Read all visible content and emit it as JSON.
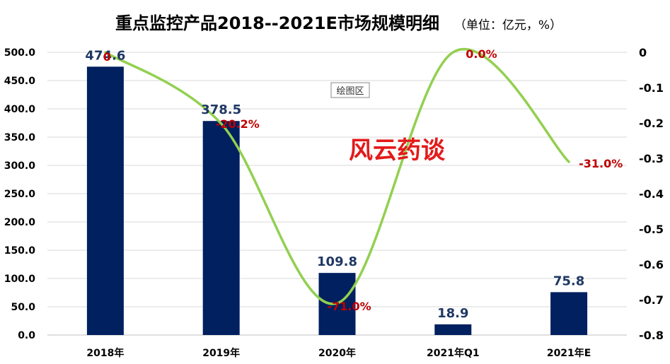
{
  "chart_data": {
    "type": "bar",
    "title": "重点监控产品2018--2021E市场规模明细",
    "unit_note": "（单位：亿元，%）",
    "categories": [
      "2018年",
      "2019年",
      "2020年",
      "2021年Q1",
      "2021年E"
    ],
    "series": [
      {
        "type": "bar",
        "axis": "left",
        "values": [
          474.6,
          378.5,
          109.8,
          18.9,
          75.8
        ],
        "labels": [
          "474.6",
          "378.5",
          "109.8",
          "18.9",
          "75.8"
        ],
        "color": "#002060"
      },
      {
        "type": "line",
        "axis": "right",
        "smooth": true,
        "values": [
          0,
          -0.202,
          -0.71,
          0,
          -0.31
        ],
        "labels": [
          "0",
          "-20.2%",
          "-71.0%",
          "0.0%",
          "-31.0%"
        ],
        "color": "#92d050"
      }
    ],
    "y_left": {
      "min": 0,
      "max": 500,
      "step": 50,
      "tick_labels": [
        "0.0",
        "50.0",
        "100.0",
        "150.0",
        "200.0",
        "250.0",
        "300.0",
        "350.0",
        "400.0",
        "450.0",
        "500.0"
      ]
    },
    "y_right": {
      "min": -0.8,
      "max": 0,
      "step": 0.1,
      "tick_labels": [
        "0",
        "-0.1",
        "-0.2",
        "-0.3",
        "-0.4",
        "-0.5",
        "-0.6",
        "-0.7",
        "-0.8"
      ]
    },
    "grid": true,
    "legend": "none",
    "tooltip": "绘图区",
    "watermark": "风云药谈"
  }
}
